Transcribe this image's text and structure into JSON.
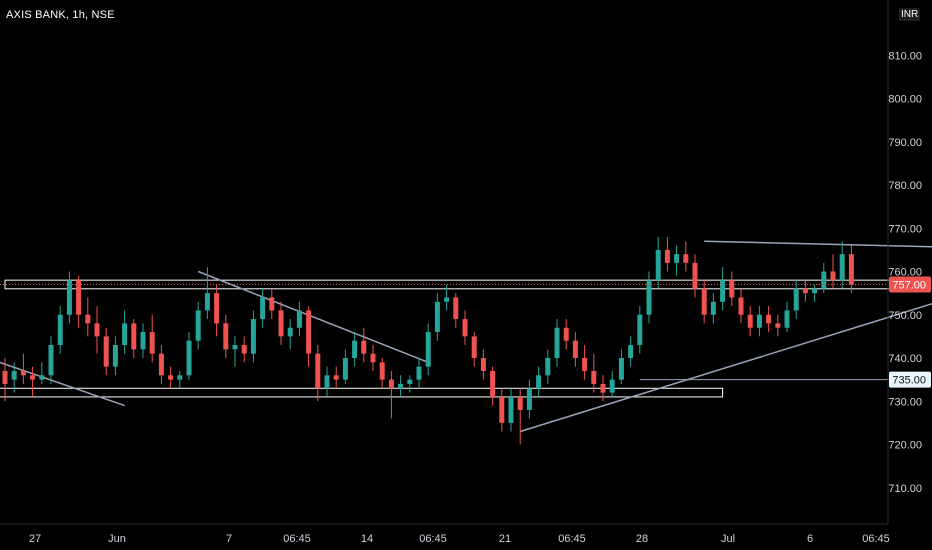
{
  "header": {
    "symbol": "AXIS BANK, 1h, NSE",
    "currency": "INR"
  },
  "colors": {
    "background": "#000000",
    "up": "#26a69a",
    "down": "#ef5350",
    "trendline": "#9aa4b8",
    "zone": "#ffffff",
    "price_line": "#ef5350"
  },
  "chart_data": {
    "type": "candlestick",
    "title": "AXIS BANK, 1h, NSE",
    "ylim": [
      700,
      820
    ],
    "y_ticks": [
      "810.00",
      "800.00",
      "790.00",
      "780.00",
      "770.00",
      "760.00",
      "750.00",
      "740.00",
      "730.00",
      "720.00",
      "710.00"
    ],
    "x_ticks": [
      "27",
      "Jun",
      "7",
      "06:45",
      "14",
      "06:45",
      "21",
      "06:45",
      "28",
      "Jul",
      "6",
      "06:45"
    ],
    "price_labels": [
      {
        "text": "757.00",
        "value": 757,
        "kind": "last"
      },
      {
        "text": "735.00",
        "value": 735,
        "kind": "level"
      }
    ],
    "zones": [
      {
        "bar_start": 0,
        "bar_end": 99,
        "low": 756,
        "high": 758
      },
      {
        "bar_start": -2,
        "bar_end": 78,
        "low": 731,
        "high": 733
      }
    ],
    "trendlines": [
      {
        "from": [
          -6,
          743
        ],
        "to": [
          13,
          729
        ]
      },
      {
        "from": [
          21,
          760
        ],
        "to": [
          46,
          739
        ]
      },
      {
        "from": [
          56,
          723
        ],
        "to": [
          106,
          756
        ]
      },
      {
        "from": [
          76,
          767
        ],
        "to": [
          105,
          765.5
        ]
      }
    ],
    "horizontal_lines": [
      {
        "value": 735,
        "bar_start": 69
      }
    ],
    "candles": [
      [
        737.0,
        740.0,
        730.0,
        734.0
      ],
      [
        735.0,
        739.0,
        732.0,
        737.0
      ],
      [
        737.0,
        741.0,
        734.0,
        736.0
      ],
      [
        736.0,
        738.0,
        731.0,
        735.0
      ],
      [
        735.0,
        739.0,
        734.0,
        736.0
      ],
      [
        736.0,
        745.0,
        734.0,
        743.0
      ],
      [
        743.0,
        752.0,
        741.0,
        750.0
      ],
      [
        750.0,
        760.0,
        748.0,
        758.0
      ],
      [
        758.0,
        759.0,
        747.0,
        750.0
      ],
      [
        750.0,
        754.0,
        745.0,
        748.0
      ],
      [
        748.0,
        752.0,
        741.0,
        745.0
      ],
      [
        745.0,
        747.0,
        736.0,
        738.0
      ],
      [
        738.0,
        745.0,
        736.0,
        743.0
      ],
      [
        743.0,
        751.0,
        741.0,
        748.0
      ],
      [
        748.0,
        749.0,
        740.0,
        742.0
      ],
      [
        742.0,
        748.0,
        740.0,
        746.0
      ],
      [
        746.0,
        750.0,
        739.0,
        741.0
      ],
      [
        741.0,
        743.0,
        734.0,
        736.0
      ],
      [
        736.0,
        738.0,
        733.0,
        735.0
      ],
      [
        735.0,
        737.0,
        733.0,
        736.0
      ],
      [
        736.0,
        746.0,
        735.0,
        744.0
      ],
      [
        744.0,
        753.0,
        742.0,
        751.0
      ],
      [
        751.0,
        761.0,
        749.0,
        755.0
      ],
      [
        755.0,
        757.0,
        745.0,
        748.0
      ],
      [
        748.0,
        750.0,
        740.0,
        742.0
      ],
      [
        742.0,
        745.0,
        738.0,
        743.0
      ],
      [
        743.0,
        745.0,
        739.0,
        741.0
      ],
      [
        741.0,
        751.0,
        739.0,
        749.0
      ],
      [
        749.0,
        756.0,
        747.0,
        754.0
      ],
      [
        754.0,
        756.0,
        749.0,
        751.0
      ],
      [
        751.0,
        753.0,
        743.0,
        745.0
      ],
      [
        745.0,
        749.0,
        742.0,
        747.0
      ],
      [
        747.0,
        753.0,
        745.0,
        751.0
      ],
      [
        751.0,
        752.0,
        738.0,
        741.0
      ],
      [
        741.0,
        743.0,
        730.0,
        733.0
      ],
      [
        733.0,
        738.0,
        731.0,
        736.0
      ],
      [
        736.0,
        738.0,
        733.0,
        735.0
      ],
      [
        735.0,
        742.0,
        734.0,
        740.0
      ],
      [
        740.0,
        746.0,
        738.0,
        744.0
      ],
      [
        744.0,
        747.0,
        739.0,
        741.0
      ],
      [
        741.0,
        743.0,
        737.0,
        739.0
      ],
      [
        739.0,
        740.0,
        733.0,
        735.0
      ],
      [
        735.0,
        737.0,
        726.0,
        733.0
      ],
      [
        733.0,
        736.0,
        731.0,
        734.0
      ],
      [
        734.0,
        736.0,
        732.0,
        735.0
      ],
      [
        735.0,
        740.0,
        733.0,
        738.0
      ],
      [
        738.0,
        748.0,
        736.0,
        746.0
      ],
      [
        746.0,
        755.0,
        744.0,
        753.0
      ],
      [
        753.0,
        757.0,
        751.0,
        754.0
      ],
      [
        754.0,
        755.0,
        747.0,
        749.0
      ],
      [
        749.0,
        751.0,
        743.0,
        745.0
      ],
      [
        745.0,
        746.0,
        738.0,
        740.0
      ],
      [
        740.0,
        742.0,
        735.0,
        737.0
      ],
      [
        737.0,
        738.0,
        729.0,
        731.0
      ],
      [
        731.0,
        733.0,
        723.0,
        725.0
      ],
      [
        725.0,
        733.0,
        723.0,
        731.0
      ],
      [
        731.0,
        733.0,
        720.0,
        728.0
      ],
      [
        728.0,
        735.0,
        726.0,
        733.0
      ],
      [
        733.0,
        738.0,
        731.0,
        736.0
      ],
      [
        736.0,
        742.0,
        734.0,
        740.0
      ],
      [
        740.0,
        749.0,
        738.0,
        747.0
      ],
      [
        747.0,
        749.0,
        742.0,
        744.0
      ],
      [
        744.0,
        746.0,
        738.0,
        740.0
      ],
      [
        740.0,
        743.0,
        735.0,
        737.0
      ],
      [
        737.0,
        741.0,
        732.0,
        734.0
      ],
      [
        734.0,
        736.0,
        730.0,
        732.0
      ],
      [
        732.0,
        737.0,
        731.0,
        735.0
      ],
      [
        735.0,
        742.0,
        734.0,
        740.0
      ],
      [
        740.0,
        745.0,
        738.0,
        743.0
      ],
      [
        743.0,
        752.0,
        741.0,
        750.0
      ],
      [
        750.0,
        760.0,
        748.0,
        758.0
      ],
      [
        758.0,
        768.0,
        756.0,
        765.0
      ],
      [
        765.0,
        768.0,
        760.0,
        762.0
      ],
      [
        762.0,
        766.0,
        759.0,
        764.0
      ],
      [
        764.0,
        767.0,
        760.0,
        762.0
      ],
      [
        762.0,
        764.0,
        754.0,
        756.0
      ],
      [
        756.0,
        758.0,
        748.0,
        750.0
      ],
      [
        750.0,
        755.0,
        748.0,
        753.0
      ],
      [
        753.0,
        761.0,
        751.0,
        758.0
      ],
      [
        758.0,
        760.0,
        752.0,
        754.0
      ],
      [
        754.0,
        756.0,
        748.0,
        750.0
      ],
      [
        750.0,
        752.0,
        745.0,
        747.0
      ],
      [
        747.0,
        752.0,
        745.0,
        750.0
      ],
      [
        750.0,
        752.0,
        746.0,
        748.0
      ],
      [
        748.0,
        750.0,
        745.0,
        747.0
      ],
      [
        747.0,
        753.0,
        746.0,
        751.0
      ],
      [
        751.0,
        758.0,
        749.0,
        756.0
      ],
      [
        756.0,
        758.0,
        753.0,
        755.0
      ],
      [
        755.0,
        757.0,
        753.0,
        756.0
      ],
      [
        756.0,
        762.0,
        755.0,
        760.0
      ],
      [
        760.0,
        764.0,
        756.0,
        758.0
      ],
      [
        758.0,
        767.0,
        756.0,
        764.0
      ],
      [
        764.0,
        766.0,
        755.0,
        757.0
      ]
    ]
  }
}
